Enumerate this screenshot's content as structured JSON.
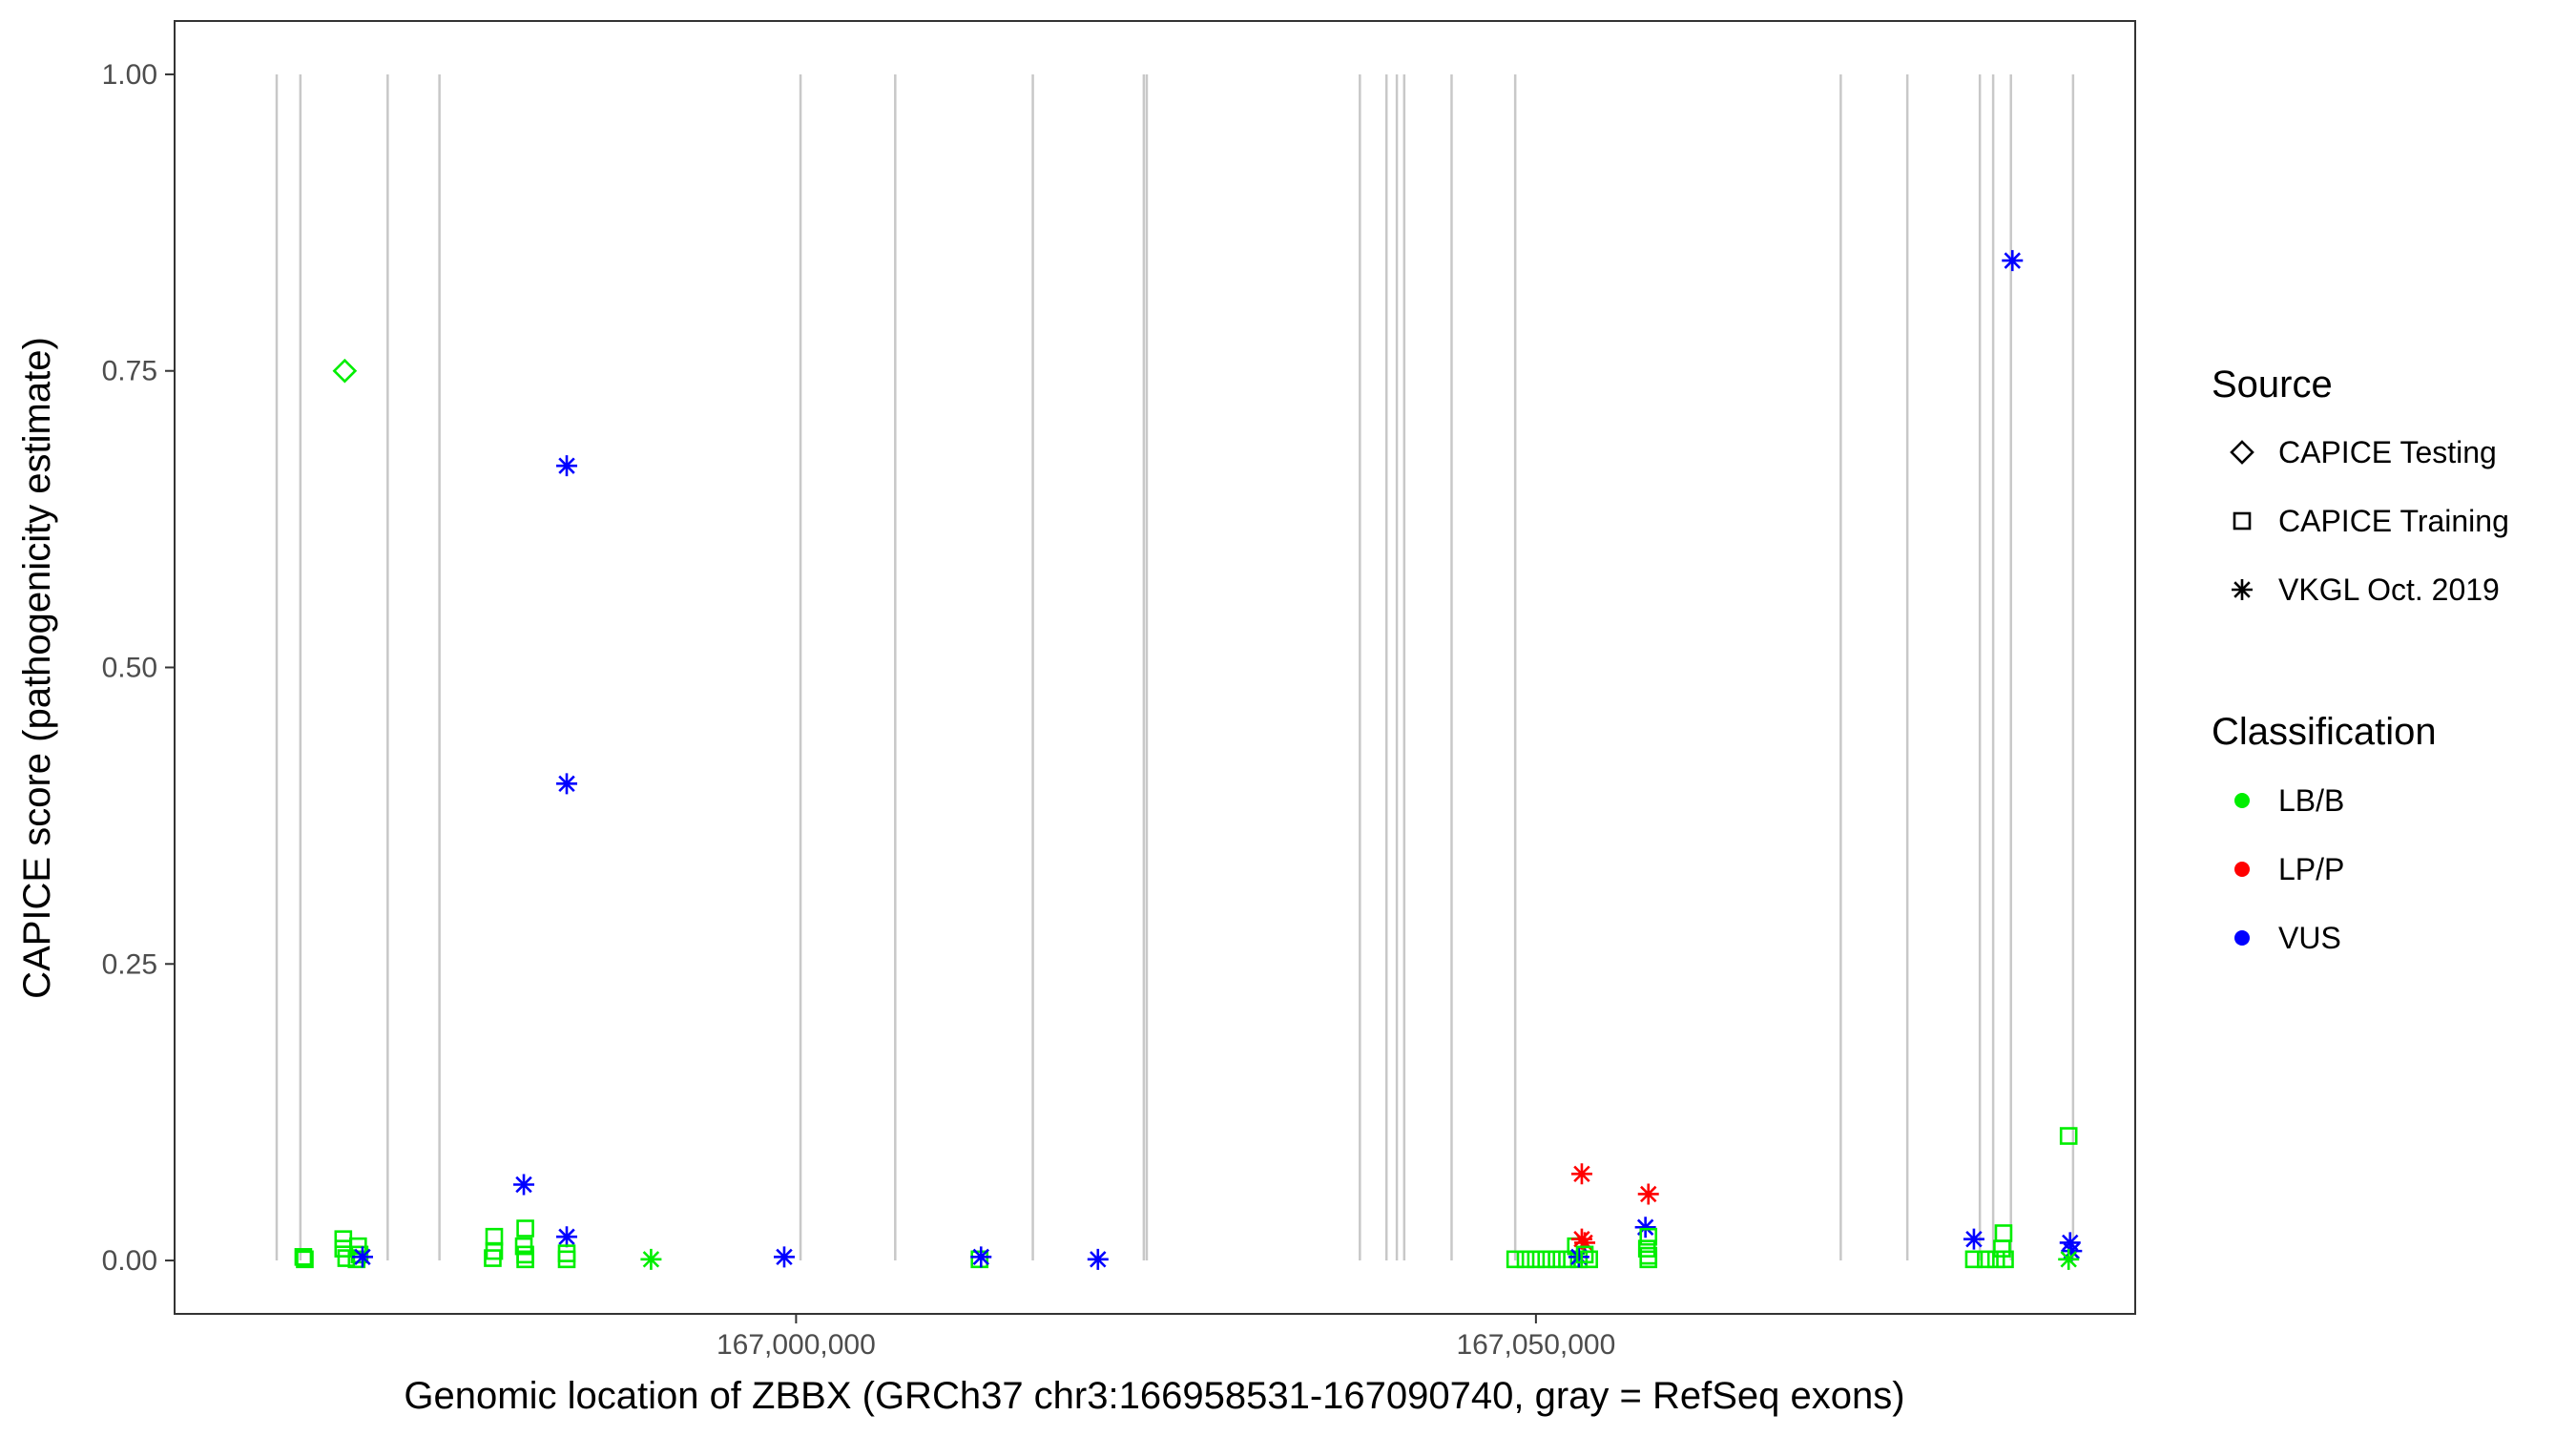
{
  "chart_data": {
    "type": "scatter",
    "title": "",
    "xlabel": "Genomic location of ZBBX (GRCh37 chr3:166958531-167090740, gray = RefSeq exons)",
    "ylabel": "CAPICE score (pathogenicity estimate)",
    "xlim": [
      166958000,
      167090500
    ],
    "ylim": [
      -0.045,
      1.045
    ],
    "x_ticks": [
      167000000,
      167050000
    ],
    "x_tick_labels": [
      "167,000,000",
      "167,050,000"
    ],
    "y_ticks": [
      0,
      0.25,
      0.5,
      0.75,
      1.0
    ],
    "y_tick_labels": [
      "0.00",
      "0.25",
      "0.50",
      "0.75",
      "1.00"
    ],
    "grid": false,
    "exon_color": "#c8c8c8",
    "exons": [
      166964900,
      166966500,
      166972400,
      166975900,
      167000300,
      167006700,
      167016000,
      167023500,
      167023700,
      167038100,
      167039900,
      167040600,
      167041100,
      167044300,
      167048600,
      167070600,
      167075100,
      167080000,
      167080900,
      167082100,
      167086300
    ],
    "legend": {
      "source_title": "Source",
      "source_items": [
        {
          "label": "CAPICE Testing",
          "shape": "diamond"
        },
        {
          "label": "CAPICE Training",
          "shape": "square"
        },
        {
          "label": "VKGL Oct. 2019",
          "shape": "asterisk"
        }
      ],
      "class_title": "Classification",
      "class_items": [
        {
          "label": "LB/B",
          "color": "#00ee00"
        },
        {
          "label": "LP/P",
          "color": "#ff0000"
        },
        {
          "label": "VUS",
          "color": "#0000ff"
        }
      ],
      "placement": "right"
    },
    "points": [
      {
        "x": 166966700,
        "y": 0.003,
        "shape": "square",
        "cls": "LB/B"
      },
      {
        "x": 166966800,
        "y": 0.001,
        "shape": "square",
        "cls": "LB/B"
      },
      {
        "x": 166969500,
        "y": 0.75,
        "shape": "diamond",
        "cls": "LB/B"
      },
      {
        "x": 166969400,
        "y": 0.018,
        "shape": "square",
        "cls": "LB/B"
      },
      {
        "x": 166969400,
        "y": 0.01,
        "shape": "square",
        "cls": "LB/B"
      },
      {
        "x": 166969600,
        "y": 0.002,
        "shape": "square",
        "cls": "LB/B"
      },
      {
        "x": 166970400,
        "y": 0.012,
        "shape": "square",
        "cls": "LB/B"
      },
      {
        "x": 166970500,
        "y": 0.005,
        "shape": "square",
        "cls": "LB/B"
      },
      {
        "x": 166970300,
        "y": 0.001,
        "shape": "square",
        "cls": "LB/B"
      },
      {
        "x": 166970700,
        "y": 0.003,
        "shape": "asterisk",
        "cls": "VUS"
      },
      {
        "x": 166979600,
        "y": 0.02,
        "shape": "square",
        "cls": "LB/B"
      },
      {
        "x": 166979600,
        "y": 0.008,
        "shape": "square",
        "cls": "LB/B"
      },
      {
        "x": 166979500,
        "y": 0.002,
        "shape": "square",
        "cls": "LB/B"
      },
      {
        "x": 166981700,
        "y": 0.027,
        "shape": "square",
        "cls": "LB/B"
      },
      {
        "x": 166981600,
        "y": 0.012,
        "shape": "square",
        "cls": "LB/B"
      },
      {
        "x": 166981700,
        "y": 0.005,
        "shape": "square",
        "cls": "LB/B"
      },
      {
        "x": 166981700,
        "y": 0.001,
        "shape": "square",
        "cls": "LB/B"
      },
      {
        "x": 166981600,
        "y": 0.064,
        "shape": "asterisk",
        "cls": "VUS"
      },
      {
        "x": 166984500,
        "y": 0.67,
        "shape": "asterisk",
        "cls": "VUS"
      },
      {
        "x": 166984500,
        "y": 0.402,
        "shape": "asterisk",
        "cls": "VUS"
      },
      {
        "x": 166984500,
        "y": 0.02,
        "shape": "asterisk",
        "cls": "VUS"
      },
      {
        "x": 166984500,
        "y": 0.006,
        "shape": "square",
        "cls": "LB/B"
      },
      {
        "x": 166984500,
        "y": 0.001,
        "shape": "square",
        "cls": "LB/B"
      },
      {
        "x": 166990200,
        "y": 0.001,
        "shape": "asterisk",
        "cls": "LB/B"
      },
      {
        "x": 166999200,
        "y": 0.003,
        "shape": "asterisk",
        "cls": "VUS"
      },
      {
        "x": 167012400,
        "y": 0.001,
        "shape": "square",
        "cls": "LB/B"
      },
      {
        "x": 167012500,
        "y": 0.003,
        "shape": "asterisk",
        "cls": "VUS"
      },
      {
        "x": 167020400,
        "y": 0.001,
        "shape": "asterisk",
        "cls": "VUS"
      },
      {
        "x": 167048600,
        "y": 0.001,
        "shape": "square",
        "cls": "LB/B"
      },
      {
        "x": 167049300,
        "y": 0.001,
        "shape": "square",
        "cls": "LB/B"
      },
      {
        "x": 167050000,
        "y": 0.001,
        "shape": "square",
        "cls": "LB/B"
      },
      {
        "x": 167050700,
        "y": 0.001,
        "shape": "square",
        "cls": "LB/B"
      },
      {
        "x": 167051400,
        "y": 0.001,
        "shape": "square",
        "cls": "LB/B"
      },
      {
        "x": 167052100,
        "y": 0.001,
        "shape": "square",
        "cls": "LB/B"
      },
      {
        "x": 167052700,
        "y": 0.012,
        "shape": "square",
        "cls": "LB/B"
      },
      {
        "x": 167052900,
        "y": 0.001,
        "shape": "square",
        "cls": "LB/B"
      },
      {
        "x": 167053100,
        "y": 0.073,
        "shape": "asterisk",
        "cls": "LP/P"
      },
      {
        "x": 167053100,
        "y": 0.018,
        "shape": "asterisk",
        "cls": "LP/P"
      },
      {
        "x": 167053300,
        "y": 0.015,
        "shape": "asterisk",
        "cls": "LP/P"
      },
      {
        "x": 167052900,
        "y": 0.003,
        "shape": "asterisk",
        "cls": "VUS"
      },
      {
        "x": 167053300,
        "y": 0.005,
        "shape": "square",
        "cls": "LB/B"
      },
      {
        "x": 167053600,
        "y": 0.001,
        "shape": "square",
        "cls": "LB/B"
      },
      {
        "x": 167057600,
        "y": 0.056,
        "shape": "asterisk",
        "cls": "LP/P"
      },
      {
        "x": 167057400,
        "y": 0.028,
        "shape": "asterisk",
        "cls": "VUS"
      },
      {
        "x": 167057600,
        "y": 0.02,
        "shape": "square",
        "cls": "LB/B"
      },
      {
        "x": 167057500,
        "y": 0.01,
        "shape": "square",
        "cls": "LB/B"
      },
      {
        "x": 167057600,
        "y": 0.004,
        "shape": "square",
        "cls": "LB/B"
      },
      {
        "x": 167057600,
        "y": 0.001,
        "shape": "square",
        "cls": "LB/B"
      },
      {
        "x": 167079600,
        "y": 0.018,
        "shape": "asterisk",
        "cls": "VUS"
      },
      {
        "x": 167079600,
        "y": 0.001,
        "shape": "square",
        "cls": "LB/B"
      },
      {
        "x": 167080400,
        "y": 0.001,
        "shape": "square",
        "cls": "LB/B"
      },
      {
        "x": 167081100,
        "y": 0.001,
        "shape": "square",
        "cls": "LB/B"
      },
      {
        "x": 167081600,
        "y": 0.023,
        "shape": "square",
        "cls": "LB/B"
      },
      {
        "x": 167081500,
        "y": 0.01,
        "shape": "square",
        "cls": "LB/B"
      },
      {
        "x": 167081700,
        "y": 0.001,
        "shape": "square",
        "cls": "LB/B"
      },
      {
        "x": 167082200,
        "y": 0.843,
        "shape": "asterisk",
        "cls": "VUS"
      },
      {
        "x": 167086000,
        "y": 0.105,
        "shape": "square",
        "cls": "LB/B"
      },
      {
        "x": 167086100,
        "y": 0.015,
        "shape": "asterisk",
        "cls": "VUS"
      },
      {
        "x": 167086200,
        "y": 0.008,
        "shape": "asterisk",
        "cls": "VUS"
      },
      {
        "x": 167086000,
        "y": 0.001,
        "shape": "asterisk",
        "cls": "LB/B"
      }
    ]
  }
}
